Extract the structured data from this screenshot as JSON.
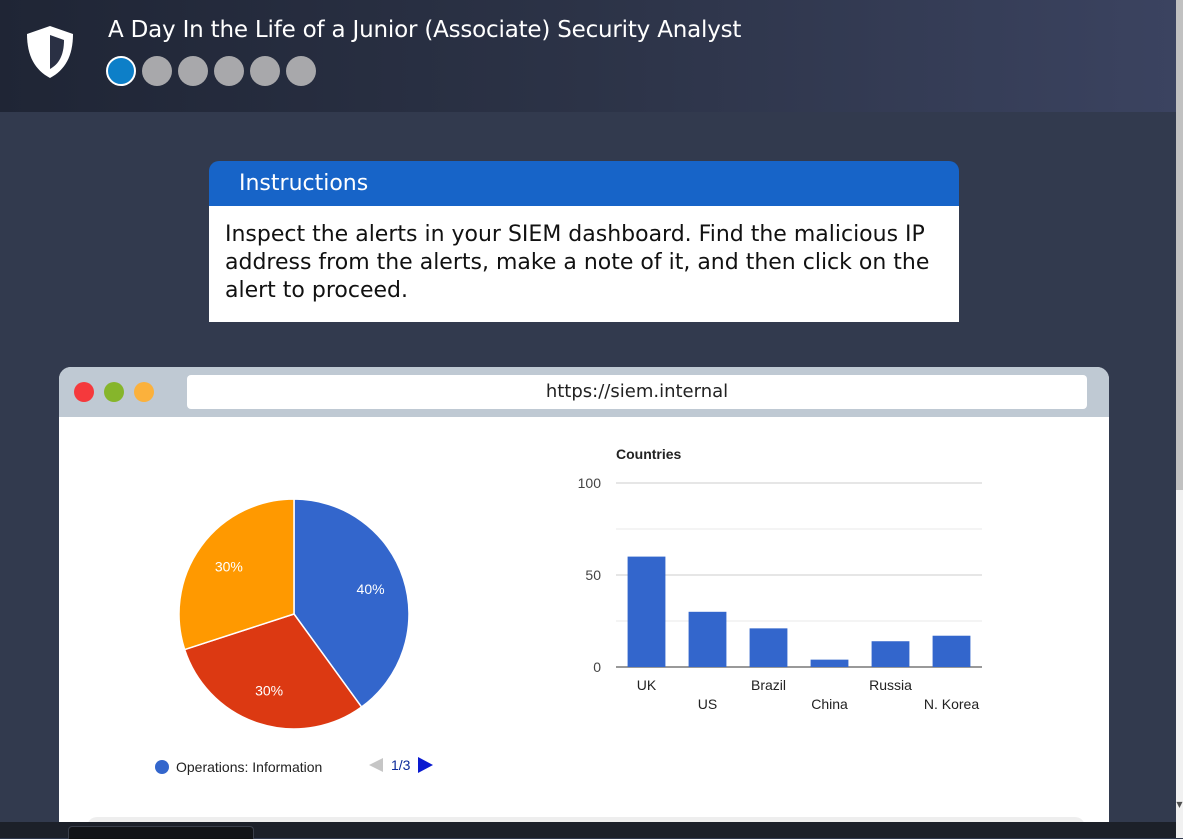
{
  "app": {
    "title": "A Day In the Life of a Junior (Associate) Security Analyst",
    "progress": {
      "current_step": 1,
      "total_steps": 6
    }
  },
  "instructions": {
    "heading": "Instructions",
    "body": "Inspect the alerts in your SIEM dashboard. Find the malicious IP address from the alerts, make a note of it, and then click on the alert to proceed."
  },
  "browser": {
    "url": "https://siem.internal",
    "window_buttons": [
      "close",
      "minimize",
      "maximize"
    ]
  },
  "legend": {
    "label": "Operations: Information",
    "page": "1/3"
  },
  "colors": {
    "brand_blue": "#1764c8",
    "series_blue": "#3366cc",
    "series_red": "#dc3912",
    "series_orange": "#ff9900"
  },
  "chart_data": [
    {
      "type": "pie",
      "slices": [
        {
          "value": 40,
          "label": "40%",
          "color": "#3366cc"
        },
        {
          "value": 30,
          "label": "30%",
          "color": "#dc3912"
        },
        {
          "value": 30,
          "label": "30%",
          "color": "#ff9900"
        }
      ]
    },
    {
      "type": "bar",
      "title": "Countries",
      "categories": [
        "UK",
        "US",
        "Brazil",
        "China",
        "Russia",
        "N. Korea"
      ],
      "values": [
        60,
        30,
        21,
        4,
        14,
        17
      ],
      "ylim": [
        0,
        100
      ],
      "yticks": [
        0,
        50,
        100
      ],
      "grid": true,
      "color": "#3366cc"
    }
  ]
}
